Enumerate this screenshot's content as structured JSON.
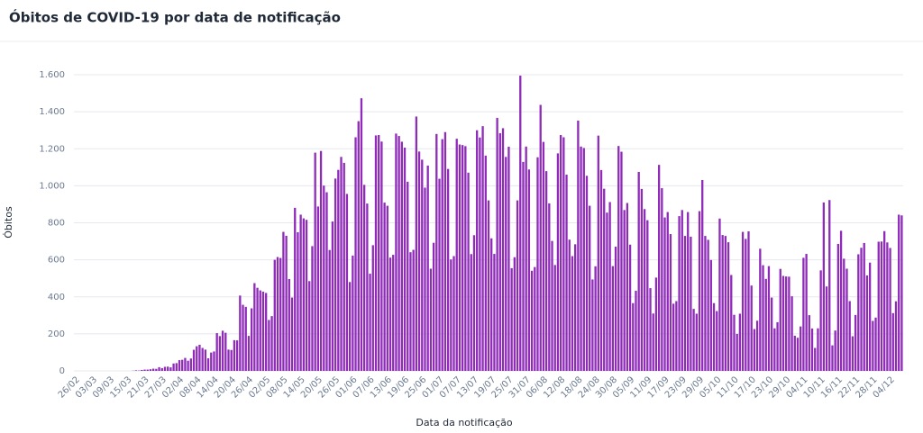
{
  "chart_data": {
    "type": "bar",
    "title": "Óbitos de COVID-19 por data de notificação",
    "x_label": "Data da notificação",
    "y_label": "Óbitos",
    "color": "#8e2cb8",
    "grid": true,
    "ylim": [
      0,
      1600
    ],
    "yticks": [
      0,
      200,
      400,
      600,
      800,
      {
        "value": 1000,
        "label": "1.000"
      },
      {
        "value": 1200,
        "label": "1.200"
      },
      {
        "value": 1400,
        "label": "1.400"
      },
      {
        "value": 1600,
        "label": "1.600"
      }
    ],
    "categories": [
      "26/02",
      null,
      null,
      null,
      null,
      null,
      "03/03",
      null,
      null,
      null,
      null,
      null,
      "09/03",
      null,
      null,
      null,
      null,
      null,
      "15/03",
      null,
      null,
      null,
      null,
      null,
      "21/03",
      null,
      null,
      null,
      null,
      null,
      "27/03",
      null,
      null,
      null,
      null,
      null,
      "02/04",
      null,
      null,
      null,
      null,
      null,
      "08/04",
      null,
      null,
      null,
      null,
      null,
      "14/04",
      null,
      null,
      null,
      null,
      null,
      "20/04",
      null,
      null,
      null,
      null,
      null,
      "26/04",
      null,
      null,
      null,
      null,
      null,
      "02/05",
      null,
      null,
      null,
      null,
      null,
      "08/05",
      null,
      null,
      null,
      null,
      null,
      "14/05",
      null,
      null,
      null,
      null,
      null,
      "20/05",
      null,
      null,
      null,
      null,
      null,
      "26/05",
      null,
      null,
      null,
      null,
      null,
      "01/06",
      null,
      null,
      null,
      null,
      null,
      "07/06",
      null,
      null,
      null,
      null,
      null,
      "13/06",
      null,
      null,
      null,
      null,
      null,
      "19/06",
      null,
      null,
      null,
      null,
      null,
      "25/06",
      null,
      null,
      null,
      null,
      null,
      "01/07",
      null,
      null,
      null,
      null,
      null,
      "07/07",
      null,
      null,
      null,
      null,
      null,
      "13/07",
      null,
      null,
      null,
      null,
      null,
      "19/07",
      null,
      null,
      null,
      null,
      null,
      "25/07",
      null,
      null,
      null,
      null,
      null,
      "31/07",
      null,
      null,
      null,
      null,
      null,
      "06/08",
      null,
      null,
      null,
      null,
      null,
      "12/08",
      null,
      null,
      null,
      null,
      null,
      "18/08",
      null,
      null,
      null,
      null,
      null,
      "24/08",
      null,
      null,
      null,
      null,
      null,
      "30/08",
      null,
      null,
      null,
      null,
      null,
      "05/09",
      null,
      null,
      null,
      null,
      null,
      "11/09",
      null,
      null,
      null,
      null,
      null,
      "17/09",
      null,
      null,
      null,
      null,
      null,
      "23/09",
      null,
      null,
      null,
      null,
      null,
      "29/09",
      null,
      null,
      null,
      null,
      null,
      "05/10",
      null,
      null,
      null,
      null,
      null,
      "11/10",
      null,
      null,
      null,
      null,
      null,
      "17/10",
      null,
      null,
      null,
      null,
      null,
      "23/10",
      null,
      null,
      null,
      null,
      null,
      "29/10",
      null,
      null,
      null,
      null,
      null,
      "04/11",
      null,
      null,
      null,
      null,
      null,
      "10/11",
      null,
      null,
      null,
      null,
      null,
      "16/11",
      null,
      null,
      null,
      null,
      null,
      "22/11",
      null,
      null,
      null,
      null,
      null,
      "28/11",
      null,
      null,
      null,
      null,
      null,
      "04/12",
      null,
      null,
      null,
      null
    ],
    "values": [
      0,
      0,
      0,
      0,
      0,
      0,
      0,
      0,
      0,
      0,
      0,
      0,
      0,
      0,
      0,
      0,
      0,
      0,
      0,
      0,
      1,
      3,
      2,
      5,
      7,
      7,
      9,
      12,
      11,
      20,
      15,
      22,
      23,
      19,
      40,
      42,
      58,
      60,
      70,
      55,
      67,
      114,
      133,
      141,
      124,
      115,
      68,
      99,
      105,
      204,
      188,
      217,
      206,
      115,
      113,
      166,
      165,
      407,
      357,
      346,
      189,
      338,
      474,
      449,
      435,
      428,
      421,
      275,
      296,
      600,
      615,
      610,
      751,
      730,
      496,
      396,
      881,
      749,
      844,
      824,
      816,
      485,
      674,
      1179,
      888,
      1188,
      1001,
      965,
      653,
      807,
      1039,
      1086,
      1156,
      1124,
      956,
      480,
      623,
      1262,
      1349,
      1473,
      1005,
      904,
      525,
      679,
      1272,
      1274,
      1239,
      909,
      892,
      612,
      627,
      1282,
      1269,
      1238,
      1206,
      1022,
      641,
      654,
      1374,
      1185,
      1141,
      990,
      1109,
      552,
      692,
      1280,
      1038,
      1252,
      1290,
      1091,
      602,
      620,
      1254,
      1223,
      1220,
      1214,
      1071,
      631,
      733,
      1300,
      1261,
      1322,
      1163,
      921,
      716,
      632,
      1367,
      1284,
      1311,
      1156,
      1211,
      555,
      614,
      921,
      1595,
      1129,
      1212,
      1088,
      541,
      561,
      1154,
      1437,
      1237,
      1079,
      905,
      702,
      572,
      1175,
      1274,
      1262,
      1060,
      709,
      620,
      684,
      1352,
      1212,
      1204,
      1054,
      892,
      494,
      565,
      1271,
      1085,
      984,
      855,
      912,
      566,
      671,
      1215,
      1184,
      869,
      907,
      682,
      366,
      433,
      1075,
      983,
      874,
      814,
      447,
      310,
      504,
      1113,
      987,
      829,
      858,
      739,
      363,
      377,
      836,
      869,
      729,
      858,
      725,
      335,
      309,
      863,
      1031,
      729,
      708,
      599,
      366,
      323,
      823,
      734,
      729,
      695,
      518,
      303,
      200,
      309,
      751,
      713,
      754,
      461,
      226,
      271,
      660,
      571,
      497,
      566,
      396,
      230,
      263,
      551,
      513,
      510,
      509,
      403,
      190,
      179,
      240,
      611,
      632,
      301,
      229,
      124,
      230,
      543,
      910,
      456,
      923,
      138,
      218,
      686,
      757,
      606,
      552,
      377,
      187,
      302,
      630,
      665,
      691,
      516,
      585,
      270,
      288,
      698,
      699,
      755,
      694,
      664,
      312,
      376,
      844,
      840
    ]
  }
}
